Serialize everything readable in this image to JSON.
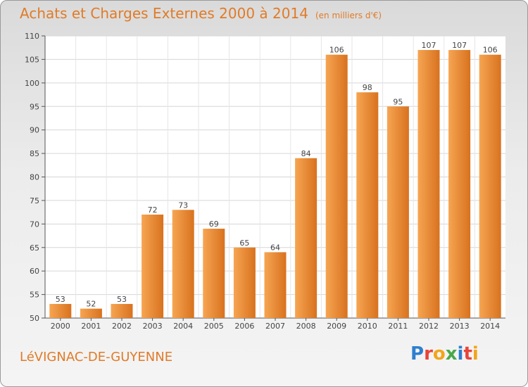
{
  "header": {
    "title": "Achats et Charges Externes 2000 à 2014",
    "unit": "(en milliers d'€)"
  },
  "footer": {
    "city": "LéVIGNAC-DE-GUYENNE",
    "logo_text": "Proxiti",
    "logo_colors": [
      "#2e7fd0",
      "#e8443a",
      "#f2a51a",
      "#4aa84a",
      "#2e7fd0",
      "#e8443a",
      "#f2a51a"
    ]
  },
  "colors": {
    "bar_light": "#f6a552",
    "bar_dark": "#d8721f",
    "title": "#e07b28"
  },
  "chart_data": {
    "type": "bar",
    "title": "Achats et Charges Externes 2000 à 2014",
    "subtitle": "(en milliers d'€)",
    "categories": [
      "2000",
      "2001",
      "2002",
      "2003",
      "2004",
      "2005",
      "2006",
      "2007",
      "2008",
      "2009",
      "2010",
      "2011",
      "2012",
      "2013",
      "2014"
    ],
    "values": [
      53,
      52,
      53,
      72,
      73,
      69,
      65,
      64,
      84,
      106,
      98,
      95,
      107,
      107,
      106
    ],
    "ylim": [
      50,
      110
    ],
    "yticks": [
      50,
      55,
      60,
      65,
      70,
      75,
      80,
      85,
      90,
      95,
      100,
      105,
      110
    ],
    "grid": true
  }
}
